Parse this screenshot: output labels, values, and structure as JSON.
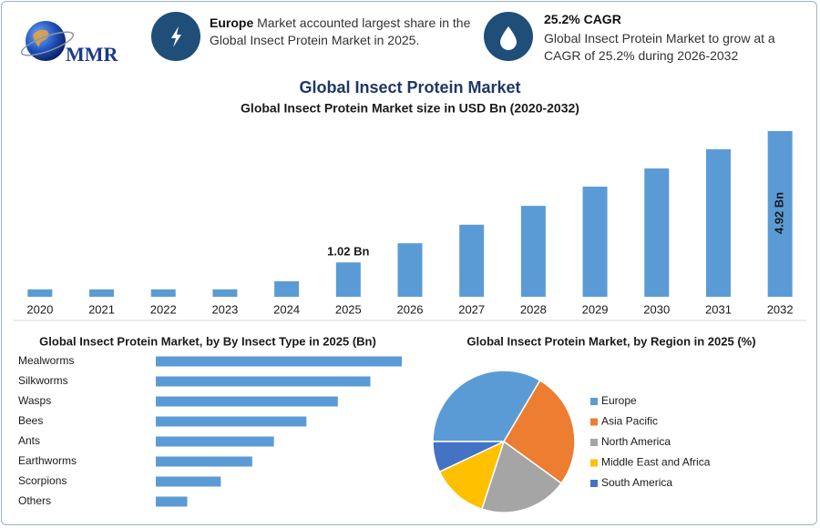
{
  "header": {
    "logo": "MMR",
    "card1": {
      "bold": "Europe",
      "text": " Market accounted largest share in the Global Insect Protein Market in 2025."
    },
    "card2": {
      "title": "25.2% CAGR",
      "text": "Global Insect Protein Market to grow at a CAGR of 25.2% during 2026-2032"
    }
  },
  "chart_data": [
    {
      "type": "bar",
      "title": "Global Insect Protein Market",
      "subtitle": "Global Insect Protein Market size in USD Bn (2020-2032)",
      "categories": [
        "2020",
        "2021",
        "2022",
        "2023",
        "2024",
        "2025",
        "2026",
        "2027",
        "2028",
        "2029",
        "2030",
        "2031",
        "2032"
      ],
      "values": [
        0.22,
        0.22,
        0.22,
        0.22,
        0.46,
        1.02,
        1.59,
        2.14,
        2.7,
        3.27,
        3.81,
        4.38,
        4.92
      ],
      "value_labels": [
        null,
        null,
        null,
        null,
        null,
        "1.02 Bn",
        null,
        null,
        null,
        null,
        null,
        null,
        "4.92 Bn"
      ],
      "color": "#5b9bd5"
    },
    {
      "type": "barh",
      "title": "Global Insect Protein Market, by By Insect Type in 2025 (Bn)",
      "categories": [
        "Mealworms",
        "Silkworms",
        "Wasps",
        "Bees",
        "Ants",
        "Earthworms",
        "Scorpions",
        "Others"
      ],
      "values": [
        0.227,
        0.198,
        0.168,
        0.139,
        0.109,
        0.089,
        0.06,
        0.029
      ],
      "color": "#5b9bd5"
    },
    {
      "type": "pie",
      "title": "Global Insect Protein Market, by Region in 2025 (%)",
      "series": [
        {
          "name": "Europe",
          "color": "#5b9bd5",
          "values": [
            33.5
          ]
        },
        {
          "name": "Asia Pacific",
          "color": "#ed7d31",
          "values": [
            26.5
          ]
        },
        {
          "name": "North America",
          "color": "#a5a5a5",
          "values": [
            20
          ]
        },
        {
          "name": "Middle East and Africa",
          "color": "#ffc000",
          "values": [
            13
          ]
        },
        {
          "name": "South America",
          "color": "#4472c4",
          "values": [
            7
          ]
        }
      ]
    }
  ]
}
